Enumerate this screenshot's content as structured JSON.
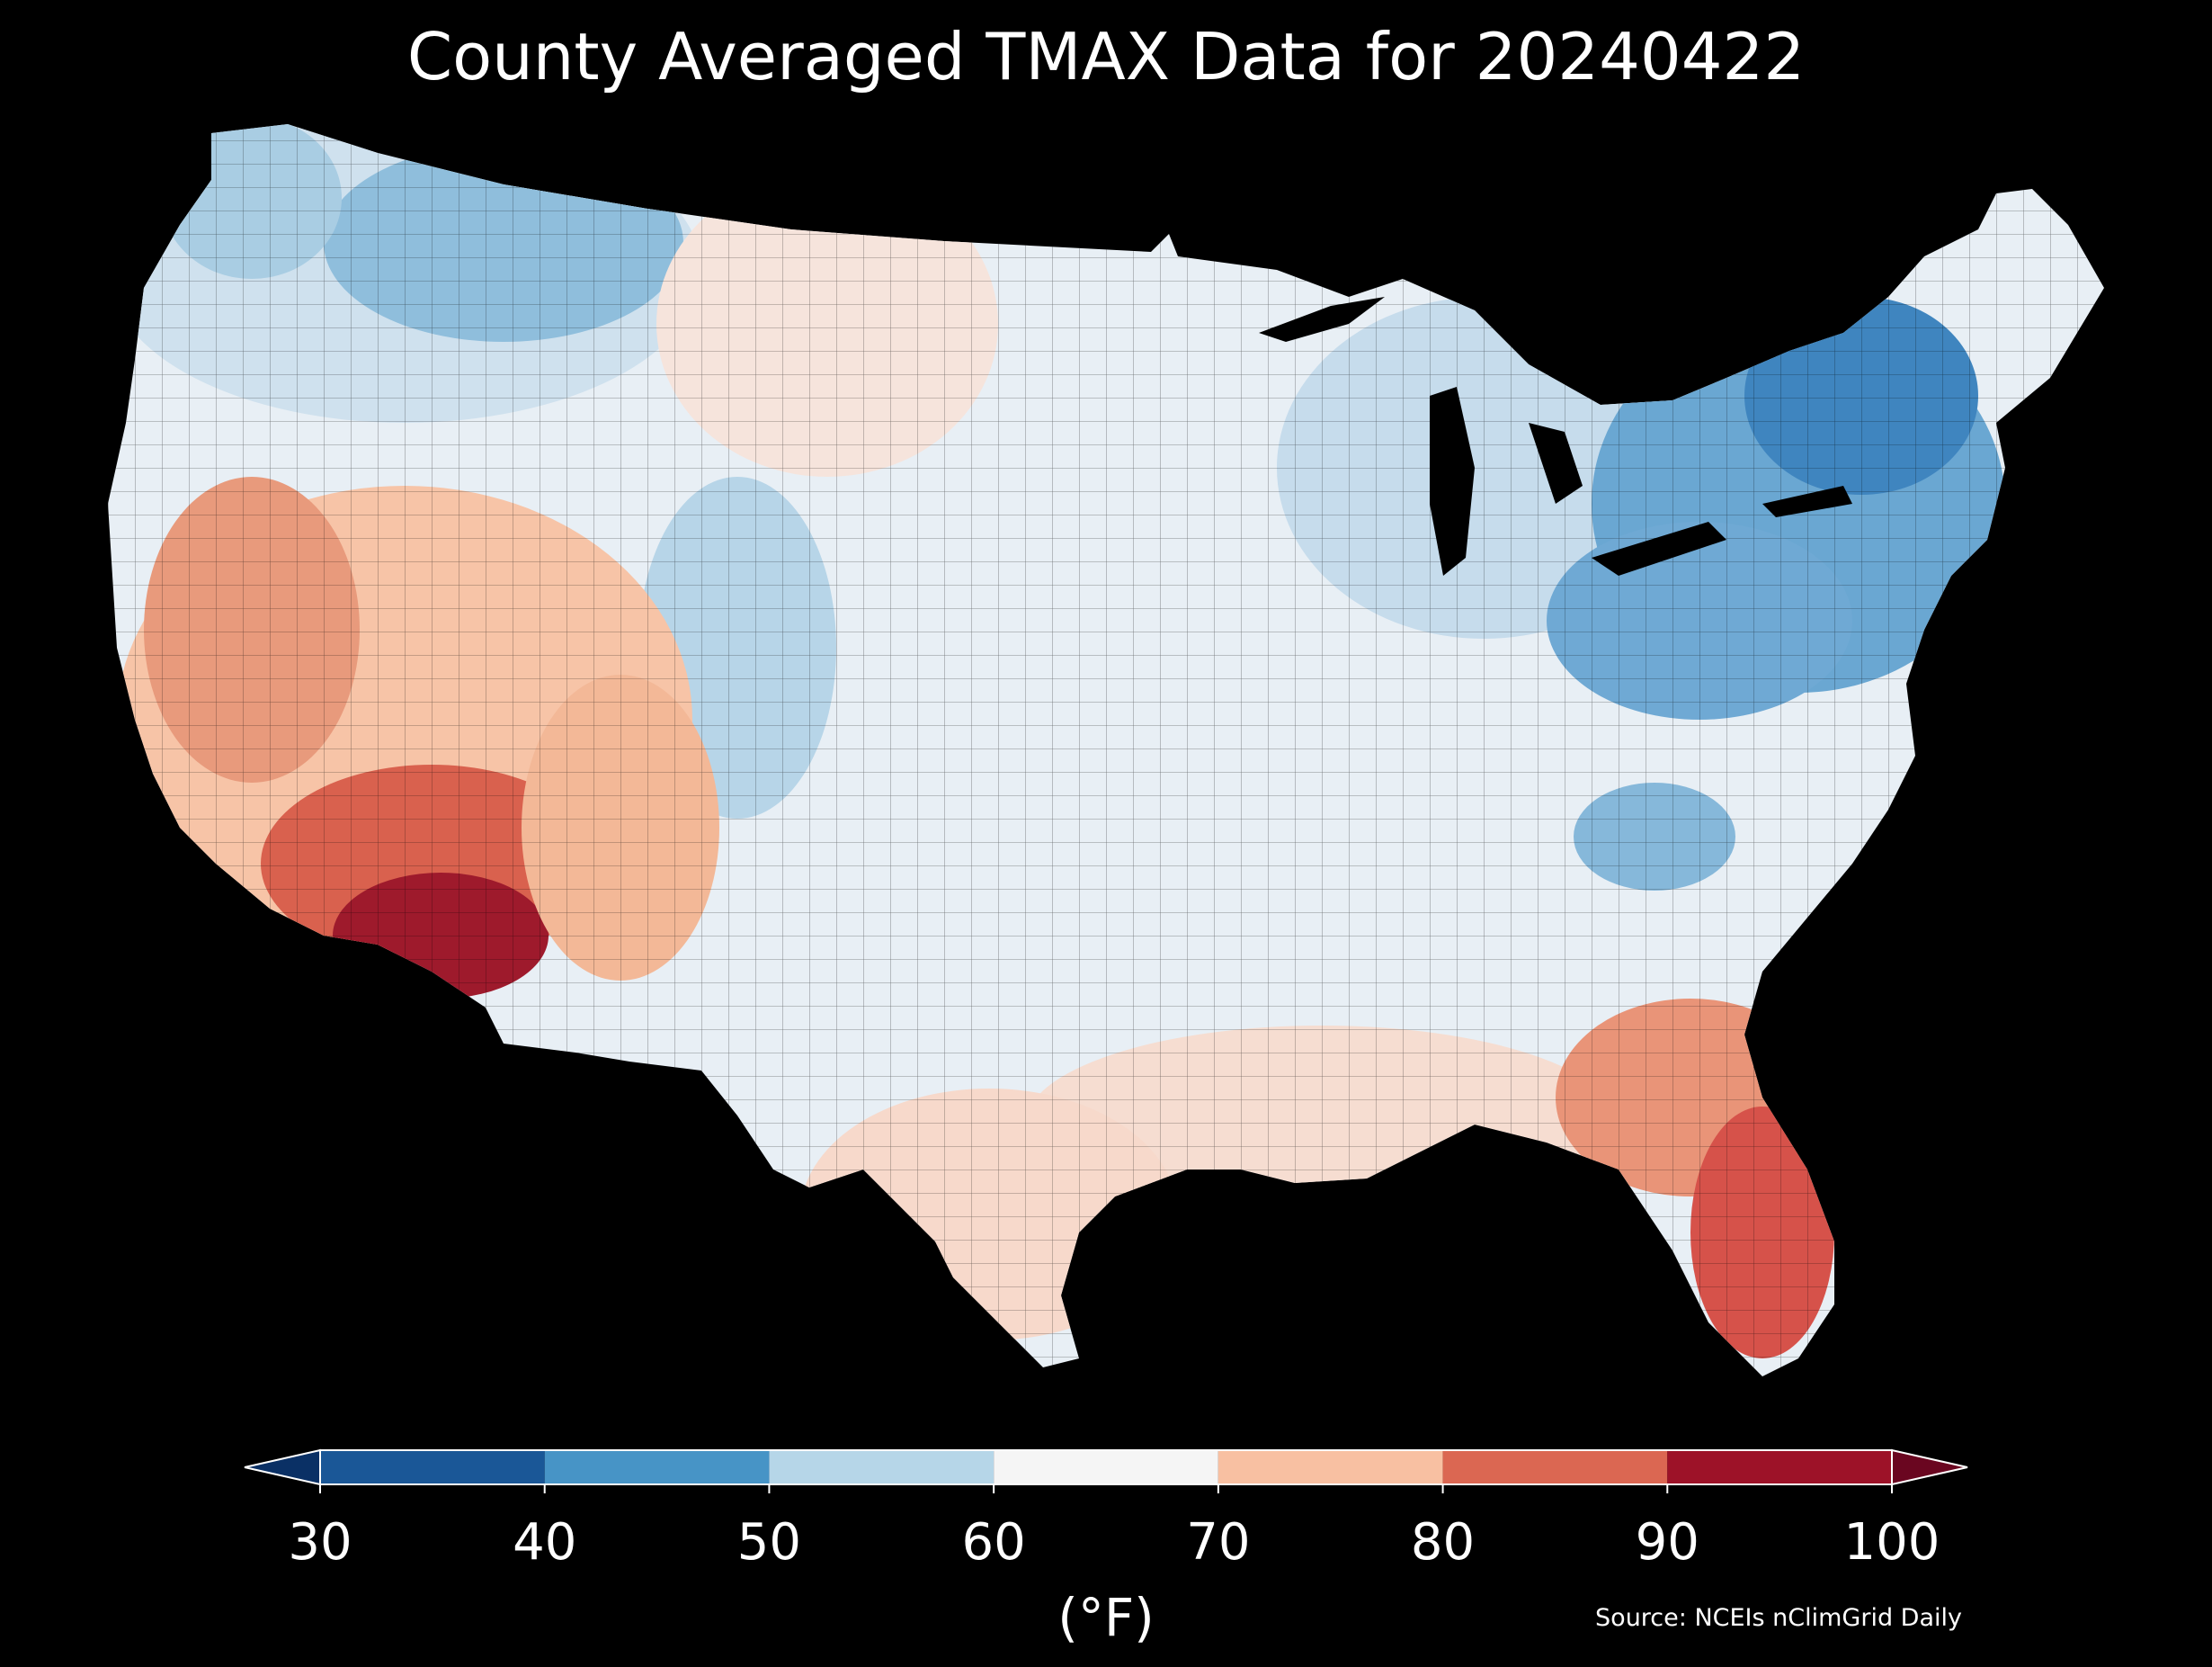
{
  "title": "County Averaged TMAX Data for 20240422",
  "colorbar": {
    "ticks": [
      "30",
      "40",
      "50",
      "60",
      "70",
      "80",
      "90",
      "100"
    ],
    "bins": [
      {
        "from": 30,
        "to": 40,
        "color": "#1a5797"
      },
      {
        "from": 40,
        "to": 50,
        "color": "#4794c6"
      },
      {
        "from": 50,
        "to": 60,
        "color": "#b6d6e8"
      },
      {
        "from": 60,
        "to": 70,
        "color": "#f5f5f5"
      },
      {
        "from": 70,
        "to": 80,
        "color": "#f8c0a2"
      },
      {
        "from": 80,
        "to": 90,
        "color": "#db6752"
      },
      {
        "from": 90,
        "to": 100,
        "color": "#9d1228"
      }
    ],
    "under_color": "#0a3065",
    "over_color": "#6a0620",
    "unit_label": "(°F)",
    "extend": "both"
  },
  "source": "Source: NCEIs nClimGrid Daily",
  "map": {
    "region": "Contiguous United States",
    "resolution": "county",
    "variable": "TMAX",
    "background": "#000000",
    "border_color": "#000000"
  }
}
